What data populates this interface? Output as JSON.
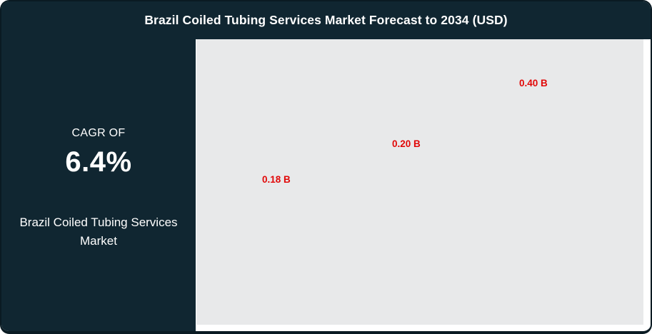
{
  "card": {
    "title": "Brazil Coiled Tubing Services Market Forecast to 2034 (USD)"
  },
  "sidebar": {
    "cagr_label": "CAGR OF",
    "cagr_value": "6.4%",
    "market_name": "Brazil Coiled Tubing Services Market"
  },
  "colors": {
    "frame_dark_teal": "#102631",
    "frame_border": "#0a1b23",
    "plot_background": "#e8e9ea",
    "data_label_red": "#e10808",
    "text_white": "#ffffff"
  },
  "chart_data": {
    "type": "bar",
    "title": "Brazil Coiled Tubing Services Market Forecast to 2034 (USD)",
    "unit": "USD Billion",
    "values": [
      0.18,
      0.2,
      0.4
    ],
    "data_labels": [
      "0.18 B",
      "0.20 B",
      "0.40 B"
    ],
    "xlabel": "",
    "ylabel": "",
    "x_tick_labels_visible": false,
    "y_axis_visible": false,
    "grid": false,
    "legend": "none"
  }
}
